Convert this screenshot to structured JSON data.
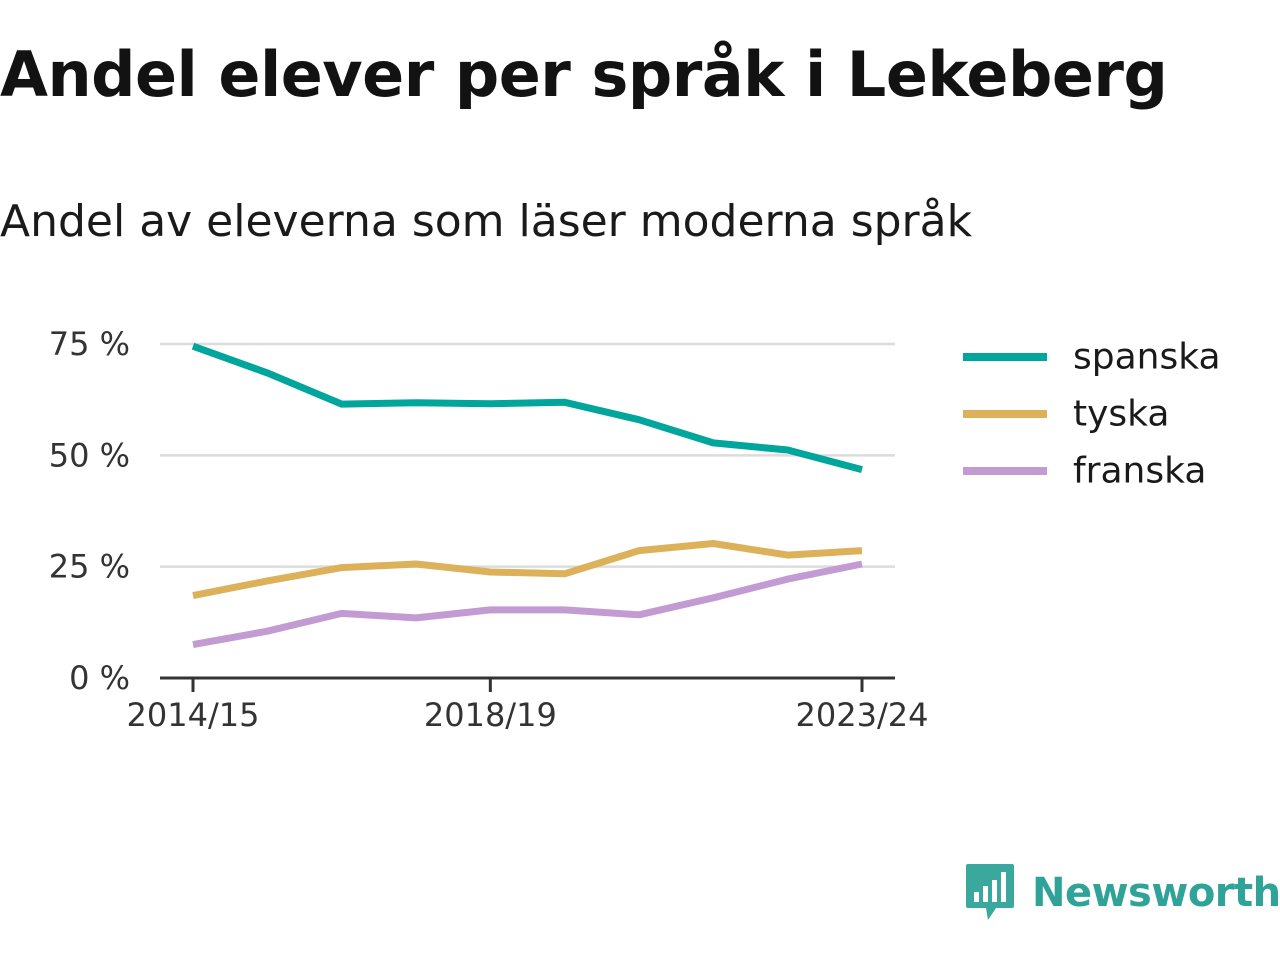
{
  "title": "Andel elever per språk i Lekeberg",
  "subtitle": "Andel av eleverna som läser moderna språk",
  "brand": {
    "name": "Newsworthy",
    "color": "#2fa398"
  },
  "chart_data": {
    "type": "line",
    "x": [
      "2014/15",
      "2015/16",
      "2016/17",
      "2017/18",
      "2018/19",
      "2019/20",
      "2020/21",
      "2021/22",
      "2022/23",
      "2023/24"
    ],
    "x_tick_labels": [
      "2014/15",
      "2018/19",
      "2023/24"
    ],
    "y_ticks": [
      0,
      25,
      50,
      75
    ],
    "y_tick_labels": [
      "0 %",
      "25 %",
      "50 %",
      "75 %"
    ],
    "ylim": [
      0,
      75
    ],
    "grid": true,
    "legend_position": "right",
    "series": [
      {
        "name": "spanska",
        "color": "#00a59b",
        "values": [
          74.5,
          68.5,
          61.5,
          61.8,
          61.6,
          61.9,
          58.0,
          52.8,
          51.2,
          46.8
        ]
      },
      {
        "name": "tyska",
        "color": "#dcb15a",
        "values": [
          18.5,
          21.8,
          24.8,
          25.6,
          23.8,
          23.4,
          28.6,
          30.2,
          27.6,
          28.6
        ]
      },
      {
        "name": "franska",
        "color": "#c39bd3",
        "values": [
          7.5,
          10.5,
          14.5,
          13.5,
          15.3,
          15.3,
          14.2,
          18.0,
          22.2,
          25.6
        ]
      }
    ]
  }
}
